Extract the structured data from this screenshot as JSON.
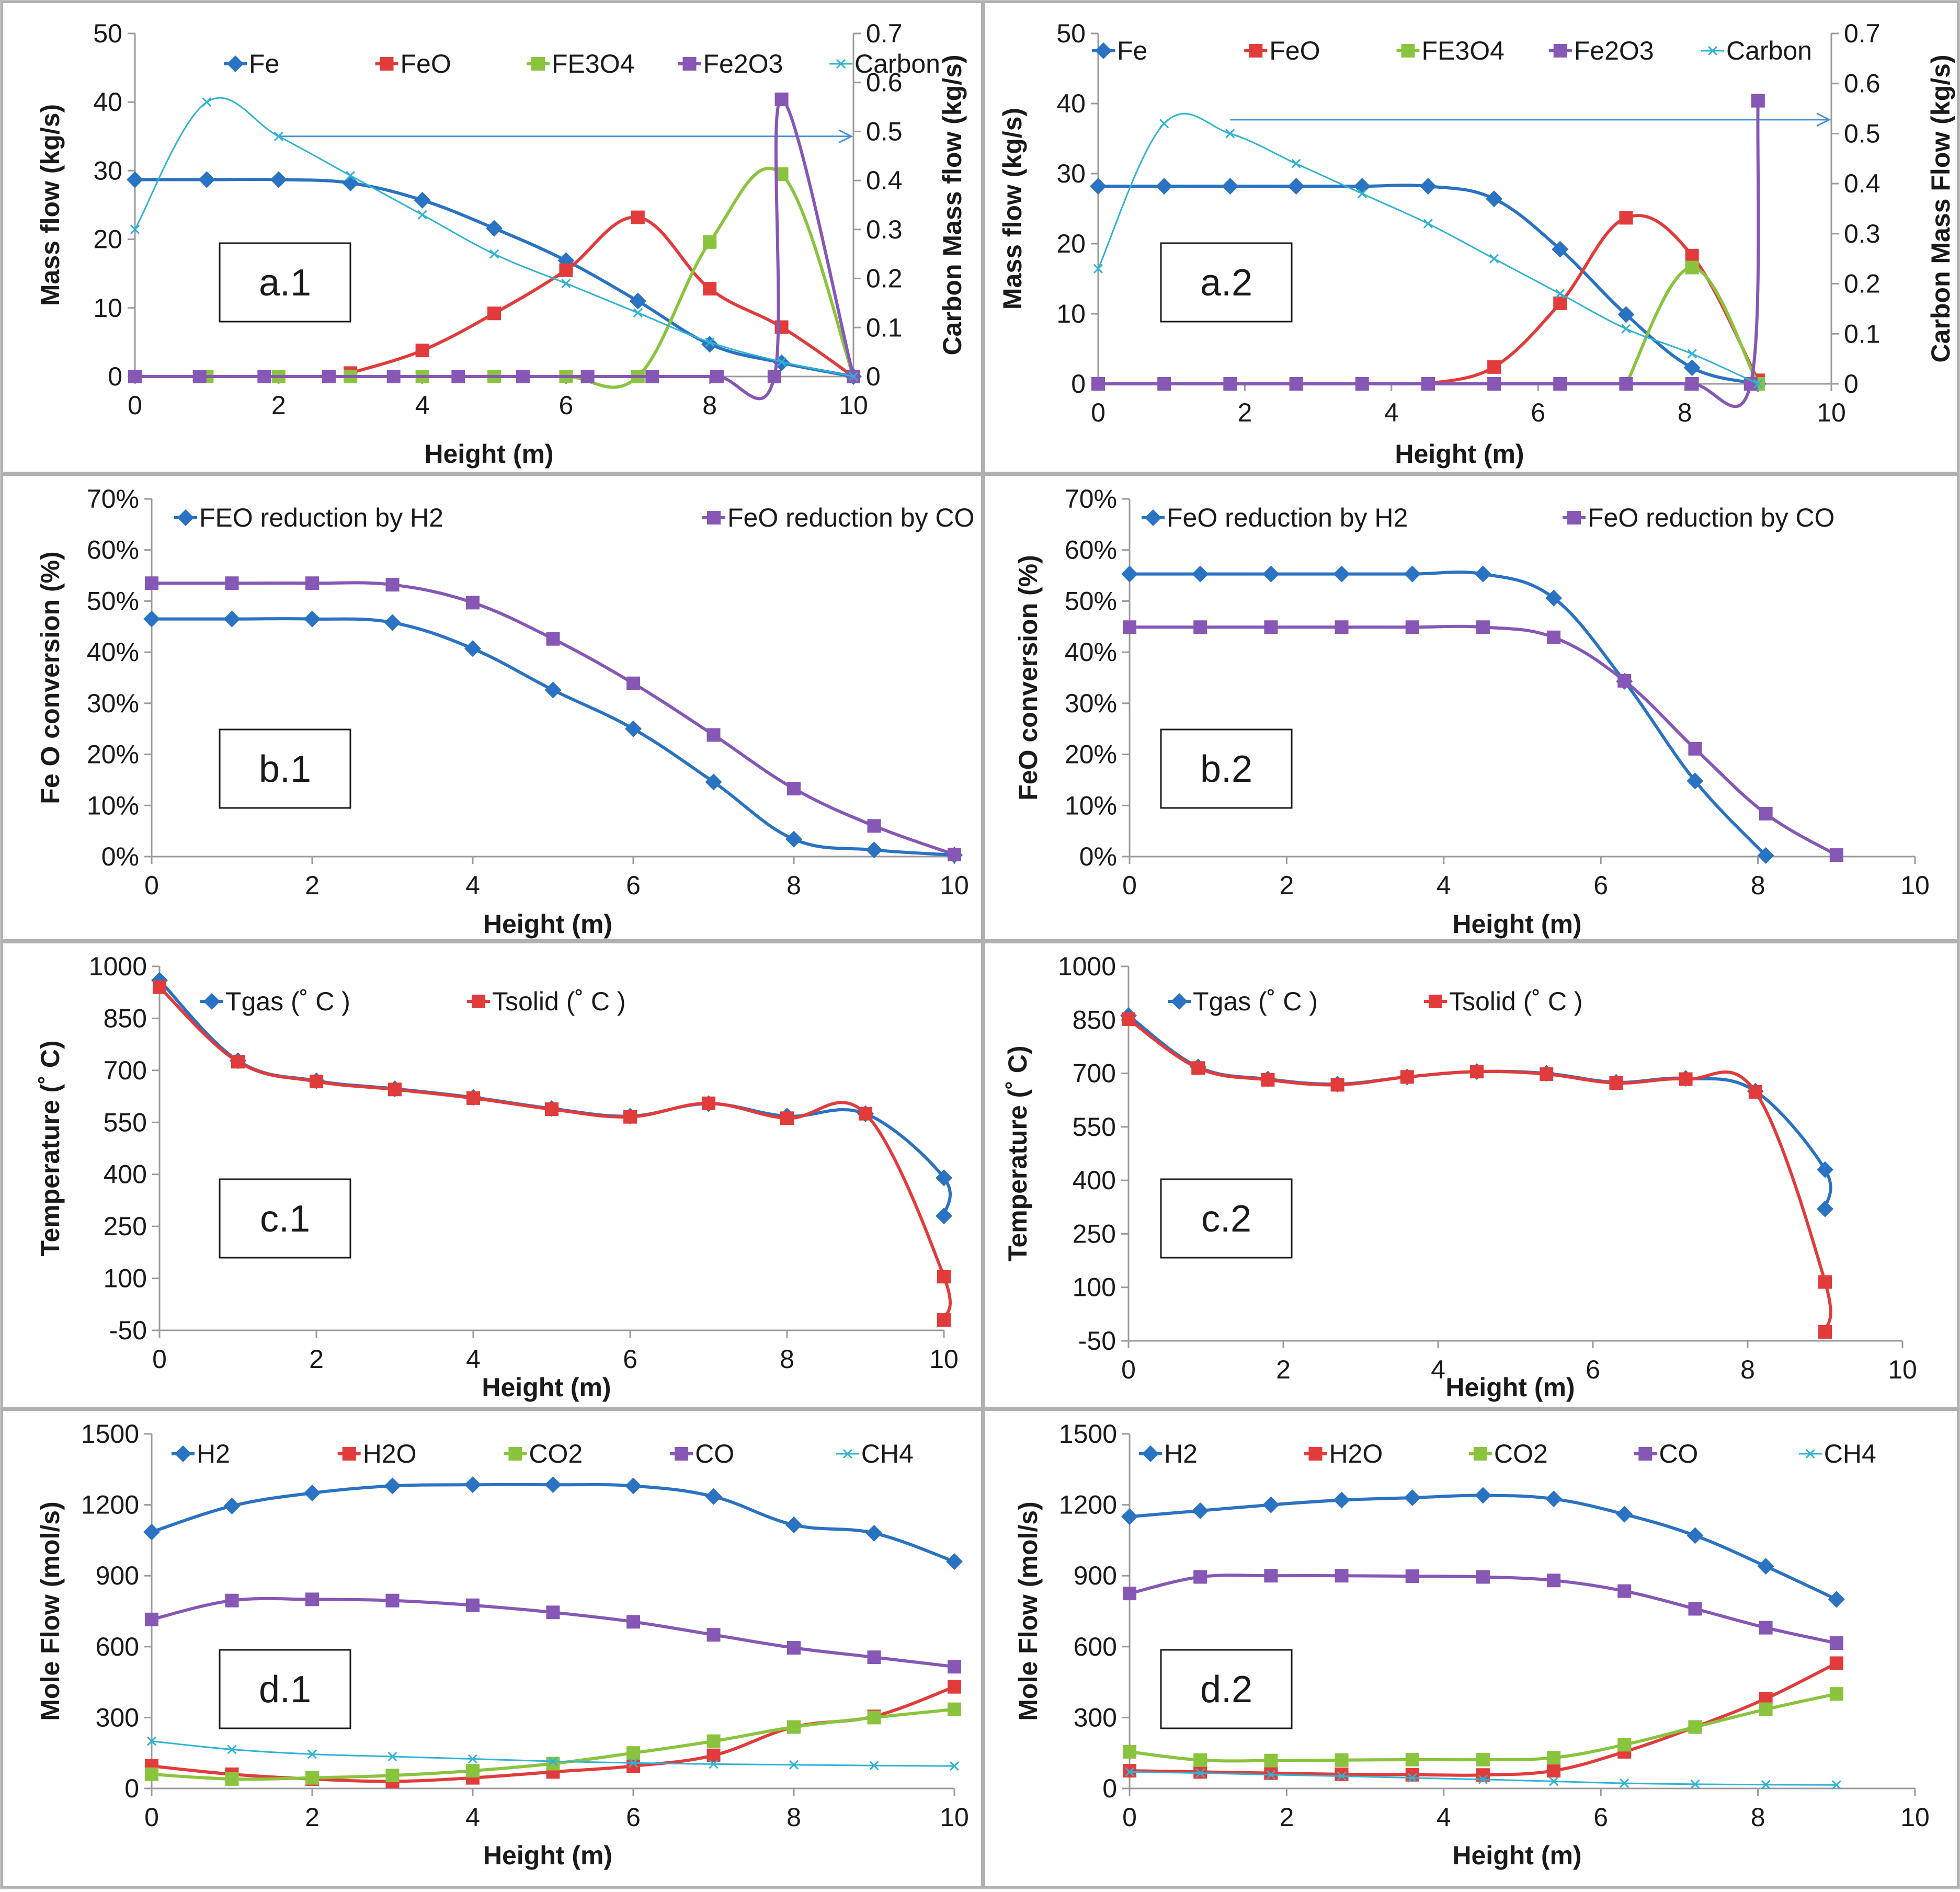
{
  "colors": {
    "Fe": "#2a72c2",
    "FeO": "#e23b3b",
    "FE3O4": "#8ac43f",
    "Fe2O3": "#8657b5",
    "Carbon": "#2fb3d3",
    "H2": "#2a72c2",
    "H2O": "#e23b3b",
    "CO2": "#8ac43f",
    "CO": "#8657b5",
    "CH4": "#2fb3d3",
    "h2line": "#2a72c2",
    "coline": "#8657b5",
    "tgas": "#2a72c2",
    "tsolid": "#e23b3b"
  },
  "chart_data": [
    {
      "id": "a1",
      "panel_label": "a.1",
      "type": "line",
      "xlabel": "Height (m)",
      "ylabel": "Mass flow (kg/s)",
      "y2label": "Carbon Mass flow (kg/s)",
      "xlim": [
        0,
        10
      ],
      "xticks": [
        "0",
        "2",
        "4",
        "6",
        "8",
        "10"
      ],
      "ylim": [
        0,
        50
      ],
      "yticks": [
        "0",
        "10",
        "20",
        "30",
        "40",
        "50"
      ],
      "y2lim": [
        0,
        0.7
      ],
      "y2ticks": [
        "0",
        "0.1",
        "0.2",
        "0.3",
        "0.4",
        "0.5",
        "0.6",
        "0.7"
      ],
      "legend": "top",
      "series": [
        {
          "name": "Fe",
          "color_key": "Fe",
          "marker": "diamond",
          "x": [
            0,
            1,
            2,
            3,
            4,
            5,
            6,
            7,
            8,
            9,
            10
          ],
          "y": [
            28.7,
            28.7,
            28.7,
            28.2,
            25.7,
            21.6,
            16.9,
            11.0,
            4.7,
            2.0,
            0
          ]
        },
        {
          "name": "FeO",
          "color_key": "FeO",
          "marker": "square",
          "x": [
            3,
            4,
            5,
            6,
            7,
            8,
            9,
            10
          ],
          "y": [
            0.5,
            3.8,
            9.2,
            15.5,
            23.2,
            12.8,
            7.2,
            0
          ]
        },
        {
          "name": "FE3O4",
          "color_key": "FE3O4",
          "marker": "square",
          "x": [
            1,
            2,
            3,
            4,
            5,
            6,
            7,
            8,
            9,
            10
          ],
          "y": [
            0,
            0,
            0,
            0,
            0,
            0,
            0,
            19.6,
            29.5,
            0
          ]
        },
        {
          "name": "Fe2O3",
          "color_key": "Fe2O3",
          "marker": "square",
          "x": [
            0,
            0.9,
            1.8,
            2.7,
            3.6,
            4.5,
            5.4,
            6.3,
            7.2,
            8.1,
            8.9,
            9.0,
            10
          ],
          "y": [
            0,
            0,
            0,
            0,
            0,
            0,
            0,
            0,
            0,
            0,
            0,
            40.4,
            0
          ]
        },
        {
          "name": "Carbon",
          "color_key": "Carbon",
          "marker": "x",
          "axis": "y2",
          "x": [
            0,
            1,
            2,
            3,
            4,
            5,
            6,
            7,
            8,
            9,
            10
          ],
          "y": [
            0.3,
            0.56,
            0.49,
            0.41,
            0.33,
            0.25,
            0.19,
            0.13,
            0.07,
            0.03,
            0
          ]
        }
      ],
      "annotations": [
        {
          "type": "arrow",
          "from": [
            2,
            35
          ],
          "to": [
            10,
            35
          ]
        }
      ]
    },
    {
      "id": "a2",
      "panel_label": "a.2",
      "type": "line",
      "xlabel": "Height (m)",
      "ylabel": "Mass flow (kg/s)",
      "y2label": "Carbon Mass Flow (kg/s)",
      "xlim": [
        0,
        10
      ],
      "xticks": [
        "0",
        "2",
        "4",
        "6",
        "8",
        "10"
      ],
      "ylim": [
        0,
        50
      ],
      "yticks": [
        "0",
        "10",
        "20",
        "30",
        "40",
        "50"
      ],
      "y2lim": [
        0,
        0.7
      ],
      "y2ticks": [
        "0",
        "0.1",
        "0.2",
        "0.3",
        "0.4",
        "0.5",
        "0.6",
        "0.7"
      ],
      "legend": "top",
      "series": [
        {
          "name": "Fe",
          "color_key": "Fe",
          "marker": "diamond",
          "x": [
            0,
            0.9,
            1.8,
            2.7,
            3.6,
            4.5,
            5.4,
            6.3,
            7.2,
            8.1,
            9.0
          ],
          "y": [
            28.2,
            28.2,
            28.2,
            28.2,
            28.2,
            28.2,
            26.4,
            19.2,
            9.9,
            2.3,
            0
          ]
        },
        {
          "name": "FeO",
          "color_key": "FeO",
          "marker": "square",
          "x": [
            4.5,
            5.4,
            6.3,
            7.2,
            8.1,
            9.0
          ],
          "y": [
            0,
            2.4,
            11.5,
            23.7,
            18.3,
            0.5
          ]
        },
        {
          "name": "FE3O4",
          "color_key": "FE3O4",
          "marker": "square",
          "x": [
            7.2,
            8.1,
            9.0
          ],
          "y": [
            0,
            16.6,
            0
          ]
        },
        {
          "name": "Fe2O3",
          "color_key": "Fe2O3",
          "marker": "square",
          "x": [
            0,
            0.9,
            1.8,
            2.7,
            3.6,
            4.5,
            5.4,
            6.3,
            7.2,
            8.1,
            8.9,
            9.0
          ],
          "y": [
            0,
            0,
            0,
            0,
            0,
            0,
            0,
            0,
            0,
            0,
            0,
            40.4
          ]
        },
        {
          "name": "Carbon",
          "color_key": "Carbon",
          "marker": "x",
          "axis": "y2",
          "x": [
            0,
            0.9,
            1.8,
            2.7,
            3.6,
            4.5,
            5.4,
            6.3,
            7.2,
            8.1,
            9.0
          ],
          "y": [
            0.23,
            0.52,
            0.5,
            0.44,
            0.38,
            0.32,
            0.25,
            0.18,
            0.11,
            0.06,
            0
          ]
        }
      ],
      "annotations": [
        {
          "type": "arrow",
          "from": [
            1.8,
            37.7
          ],
          "to": [
            10,
            37.7
          ]
        }
      ]
    },
    {
      "id": "b1",
      "panel_label": "b.1",
      "type": "line",
      "xlabel": "Height (m)",
      "ylabel": "Fe O conversion (%)",
      "xlim": [
        0,
        10
      ],
      "xticks": [
        "0",
        "2",
        "4",
        "6",
        "8",
        "10"
      ],
      "ylim": [
        0,
        70
      ],
      "yticks": [
        "0%",
        "10%",
        "20%",
        "30%",
        "40%",
        "50%",
        "60%",
        "70%"
      ],
      "legend": "top",
      "series": [
        {
          "name": "FEO reduction by H2",
          "color_key": "h2line",
          "marker": "diamond",
          "x": [
            0,
            1,
            2,
            3,
            4,
            5,
            6,
            7,
            8,
            9,
            10
          ],
          "y": [
            46.5,
            46.5,
            46.5,
            45.8,
            40.7,
            32.6,
            25.0,
            14.6,
            3.4,
            1.3,
            0.3
          ]
        },
        {
          "name": "FeO reduction by CO",
          "color_key": "coline",
          "marker": "square",
          "x": [
            0,
            1,
            2,
            3,
            4,
            5,
            6,
            7,
            8,
            9,
            10
          ],
          "y": [
            53.5,
            53.5,
            53.5,
            53.2,
            49.7,
            42.6,
            33.9,
            23.8,
            13.3,
            6.0,
            0.4
          ]
        }
      ]
    },
    {
      "id": "b2",
      "panel_label": "b.2",
      "type": "line",
      "xlabel": "Height (m)",
      "ylabel": "FeO conversion (%)",
      "xlim": [
        0,
        10
      ],
      "xticks": [
        "0",
        "2",
        "4",
        "6",
        "8",
        "10"
      ],
      "ylim": [
        0,
        70
      ],
      "yticks": [
        "0%",
        "10%",
        "20%",
        "30%",
        "40%",
        "50%",
        "60%",
        "70%"
      ],
      "legend": "top",
      "series": [
        {
          "name": "FeO reduction by H2",
          "color_key": "h2line",
          "marker": "diamond",
          "x": [
            0,
            0.9,
            1.8,
            2.7,
            3.6,
            4.5,
            5.4,
            6.3,
            7.2,
            8.1
          ],
          "y": [
            55.3,
            55.3,
            55.3,
            55.3,
            55.3,
            55.3,
            50.6,
            34.3,
            14.8,
            0.2
          ]
        },
        {
          "name": "FeO reduction by CO",
          "color_key": "coline",
          "marker": "square",
          "x": [
            0,
            0.9,
            1.8,
            2.7,
            3.6,
            4.5,
            5.4,
            6.3,
            7.2,
            8.1,
            9.0
          ],
          "y": [
            44.9,
            44.9,
            44.9,
            44.9,
            44.9,
            44.9,
            42.9,
            34.4,
            21.1,
            8.4,
            0.3
          ]
        }
      ]
    },
    {
      "id": "c1",
      "panel_label": "c.1",
      "type": "line",
      "xlabel": "Height (m)",
      "ylabel": "Temperature (˚ C)",
      "xlim": [
        0,
        10
      ],
      "xticks": [
        "0",
        "2",
        "4",
        "6",
        "8",
        "10"
      ],
      "ylim": [
        -50,
        1000
      ],
      "yticks": [
        "-50",
        "100",
        "250",
        "400",
        "550",
        "700",
        "850",
        "1000"
      ],
      "legend": "top",
      "series": [
        {
          "name": "Tgas (˚ C )",
          "color_key": "tgas",
          "marker": "diamond",
          "x": [
            0,
            1,
            2,
            3,
            4,
            5,
            6,
            7,
            8,
            9,
            10,
            10
          ],
          "y": [
            960,
            728,
            670,
            647,
            622,
            590,
            568,
            604,
            568,
            575,
            390,
            280
          ]
        },
        {
          "name": "Tsolid (˚ C )",
          "color_key": "tsolid",
          "marker": "square",
          "x": [
            0,
            1,
            2,
            3,
            4,
            5,
            6,
            7,
            8,
            9,
            10,
            10
          ],
          "y": [
            940,
            725,
            668,
            645,
            620,
            588,
            566,
            605,
            562,
            575,
            105,
            -20
          ]
        }
      ]
    },
    {
      "id": "c2",
      "panel_label": "c.2",
      "type": "line",
      "xlabel": "Height (m)",
      "ylabel": "Temperature (˚ C)",
      "xlim": [
        0,
        10
      ],
      "xticks": [
        "0",
        "2",
        "4",
        "6",
        "8",
        "10"
      ],
      "ylim": [
        -50,
        1000
      ],
      "yticks": [
        "-50",
        "100",
        "250",
        "400",
        "550",
        "700",
        "850",
        "1000"
      ],
      "legend": "top",
      "series": [
        {
          "name": "Tgas (˚ C )",
          "color_key": "tgas",
          "marker": "diamond",
          "x": [
            0,
            0.9,
            1.8,
            2.7,
            3.6,
            4.5,
            5.4,
            6.3,
            7.2,
            8.1,
            9.0,
            9.0
          ],
          "y": [
            862,
            718,
            684,
            670,
            690,
            705,
            700,
            675,
            686,
            650,
            430,
            320
          ]
        },
        {
          "name": "Tsolid (˚ C )",
          "color_key": "tsolid",
          "marker": "square",
          "x": [
            0,
            0.9,
            1.8,
            2.7,
            3.6,
            4.5,
            5.4,
            6.3,
            7.2,
            8.1,
            9.0,
            9.0
          ],
          "y": [
            852,
            715,
            682,
            668,
            690,
            705,
            698,
            673,
            684,
            648,
            115,
            -25
          ]
        }
      ]
    },
    {
      "id": "d1",
      "panel_label": "d.1",
      "type": "line",
      "xlabel": "Height (m)",
      "ylabel": "Mole Flow (mol/s)",
      "xlim": [
        0,
        10
      ],
      "xticks": [
        "0",
        "2",
        "4",
        "6",
        "8",
        "10"
      ],
      "ylim": [
        0,
        1500
      ],
      "yticks": [
        "0",
        "300",
        "600",
        "900",
        "1200",
        "1500"
      ],
      "legend": "top",
      "series": [
        {
          "name": "H2",
          "color_key": "H2",
          "marker": "diamond",
          "x": [
            0,
            1,
            2,
            3,
            4,
            5,
            6,
            7,
            8,
            9,
            10
          ],
          "y": [
            1085,
            1195,
            1250,
            1280,
            1285,
            1285,
            1280,
            1235,
            1115,
            1080,
            960
          ]
        },
        {
          "name": "H2O",
          "color_key": "H2O",
          "marker": "square",
          "x": [
            0,
            1,
            2,
            3,
            4,
            5,
            6,
            7,
            8,
            9,
            10
          ],
          "y": [
            95,
            60,
            40,
            30,
            45,
            70,
            95,
            140,
            260,
            305,
            430
          ]
        },
        {
          "name": "CO2",
          "color_key": "CO2",
          "marker": "square",
          "x": [
            0,
            1,
            2,
            3,
            4,
            5,
            6,
            7,
            8,
            9,
            10
          ],
          "y": [
            60,
            40,
            45,
            55,
            75,
            105,
            150,
            200,
            260,
            300,
            335
          ]
        },
        {
          "name": "CO",
          "color_key": "CO",
          "marker": "square",
          "x": [
            0,
            1,
            2,
            3,
            4,
            5,
            6,
            7,
            8,
            9,
            10
          ],
          "y": [
            715,
            795,
            800,
            795,
            775,
            745,
            705,
            650,
            595,
            555,
            515
          ]
        },
        {
          "name": "CH4",
          "color_key": "CH4",
          "marker": "x",
          "x": [
            0,
            1,
            2,
            3,
            4,
            5,
            6,
            7,
            8,
            9,
            10
          ],
          "y": [
            200,
            165,
            145,
            135,
            125,
            115,
            108,
            103,
            100,
            97,
            95
          ]
        }
      ]
    },
    {
      "id": "d2",
      "panel_label": "d.2",
      "type": "line",
      "xlabel": "Height (m)",
      "ylabel": "Mole Flow (mol/s)",
      "xlim": [
        0,
        10
      ],
      "xticks": [
        "0",
        "2",
        "4",
        "6",
        "8",
        "10"
      ],
      "ylim": [
        0,
        1500
      ],
      "yticks": [
        "0",
        "300",
        "600",
        "900",
        "1200",
        "1500"
      ],
      "legend": "top",
      "series": [
        {
          "name": "H2",
          "color_key": "H2",
          "marker": "diamond",
          "x": [
            0,
            0.9,
            1.8,
            2.7,
            3.6,
            4.5,
            5.4,
            6.3,
            7.2,
            8.1,
            9.0
          ],
          "y": [
            1150,
            1175,
            1200,
            1220,
            1230,
            1240,
            1225,
            1160,
            1070,
            940,
            800
          ]
        },
        {
          "name": "H2O",
          "color_key": "H2O",
          "marker": "square",
          "x": [
            0,
            0.9,
            1.8,
            2.7,
            3.6,
            4.5,
            5.4,
            6.3,
            7.2,
            8.1,
            9.0
          ],
          "y": [
            75,
            70,
            65,
            60,
            58,
            57,
            75,
            155,
            260,
            380,
            530
          ]
        },
        {
          "name": "CO2",
          "color_key": "CO2",
          "marker": "square",
          "x": [
            0,
            0.9,
            1.8,
            2.7,
            3.6,
            4.5,
            5.4,
            6.3,
            7.2,
            8.1,
            9.0
          ],
          "y": [
            155,
            120,
            118,
            120,
            122,
            122,
            130,
            185,
            260,
            335,
            400
          ]
        },
        {
          "name": "CO",
          "color_key": "CO",
          "marker": "square",
          "x": [
            0,
            0.9,
            1.8,
            2.7,
            3.6,
            4.5,
            5.4,
            6.3,
            7.2,
            8.1,
            9.0
          ],
          "y": [
            825,
            895,
            900,
            900,
            898,
            895,
            880,
            835,
            760,
            680,
            615
          ]
        },
        {
          "name": "CH4",
          "color_key": "CH4",
          "marker": "x",
          "x": [
            0,
            0.9,
            1.8,
            2.7,
            3.6,
            4.5,
            5.4,
            6.3,
            7.2,
            8.1,
            9.0
          ],
          "y": [
            70,
            65,
            58,
            52,
            45,
            38,
            30,
            22,
            18,
            16,
            15
          ]
        }
      ]
    }
  ]
}
